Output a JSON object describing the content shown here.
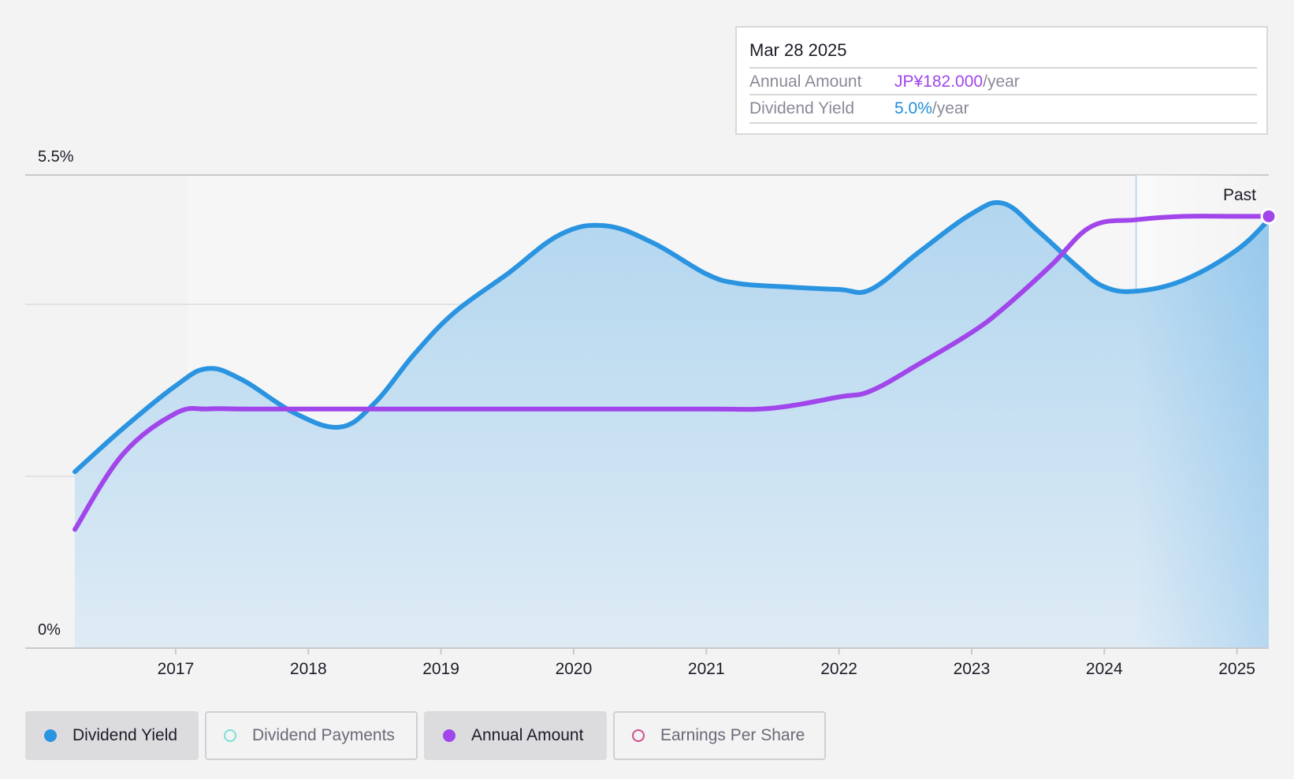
{
  "tooltip": {
    "date": "Mar 28 2025",
    "rows": [
      {
        "label": "Annual Amount",
        "value": "JP¥182.000",
        "unit": "/year",
        "color": "#a146ea"
      },
      {
        "label": "Dividend Yield",
        "value": "5.0%",
        "unit": "/year",
        "color": "#1f8fd8"
      }
    ]
  },
  "legend": [
    {
      "label": "Dividend Yield",
      "color": "#2a94e0",
      "active": true,
      "filled": true
    },
    {
      "label": "Dividend Payments",
      "color": "#79e0d6",
      "active": false,
      "filled": false
    },
    {
      "label": "Annual Amount",
      "color": "#a146ea",
      "active": true,
      "filled": true
    },
    {
      "label": "Earnings Per Share",
      "color": "#d04f8a",
      "active": false,
      "filled": false
    }
  ],
  "chart_data": {
    "type": "line",
    "y_axis_labels": [
      "5.5%",
      "0%"
    ],
    "ylim": [
      0,
      5.5
    ],
    "x_ticks": [
      "2017",
      "2018",
      "2019",
      "2020",
      "2021",
      "2022",
      "2023",
      "2024",
      "2025"
    ],
    "xlim": [
      2016.24,
      2025.24
    ],
    "past_region": {
      "label": "Past",
      "start": 2024.24
    },
    "grid": true,
    "series": [
      {
        "name": "Dividend Yield",
        "color": "#2a94e0",
        "area": true,
        "x": [
          2016.24,
          2016.6,
          2017.0,
          2017.24,
          2017.5,
          2017.9,
          2018.24,
          2018.5,
          2018.8,
          2019.1,
          2019.5,
          2019.9,
          2020.24,
          2020.6,
          2021.0,
          2021.24,
          2021.6,
          2022.0,
          2022.24,
          2022.6,
          2023.0,
          2023.24,
          2023.5,
          2023.8,
          2024.0,
          2024.24,
          2024.6,
          2025.0,
          2025.24
        ],
        "y": [
          2.05,
          2.55,
          3.05,
          3.25,
          3.12,
          2.73,
          2.57,
          2.85,
          3.42,
          3.9,
          4.35,
          4.81,
          4.91,
          4.71,
          4.35,
          4.24,
          4.2,
          4.17,
          4.17,
          4.6,
          5.05,
          5.17,
          4.85,
          4.43,
          4.2,
          4.15,
          4.28,
          4.63,
          4.98
        ]
      },
      {
        "name": "Annual Amount",
        "color": "#a146ea",
        "area": false,
        "x": [
          2016.24,
          2016.6,
          2017.0,
          2017.24,
          2017.5,
          2018.0,
          2019.0,
          2020.0,
          2021.0,
          2021.5,
          2022.0,
          2022.24,
          2022.6,
          2023.0,
          2023.24,
          2023.6,
          2023.9,
          2024.24,
          2024.6,
          2025.0,
          2025.24
        ],
        "y": [
          1.38,
          2.25,
          2.73,
          2.78,
          2.78,
          2.78,
          2.78,
          2.78,
          2.78,
          2.79,
          2.92,
          2.99,
          3.3,
          3.67,
          3.95,
          4.45,
          4.9,
          4.98,
          5.02,
          5.02,
          5.02
        ]
      }
    ]
  }
}
